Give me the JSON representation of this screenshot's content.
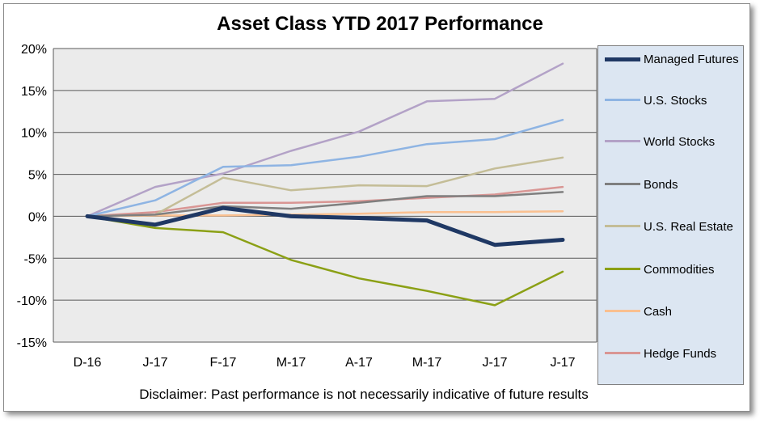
{
  "chart_data": {
    "type": "line",
    "title": "Asset Class YTD 2017 Performance",
    "xlabel": "",
    "ylabel": "",
    "categories": [
      "D-16",
      "J-17",
      "F-17",
      "M-17",
      "A-17",
      "M-17",
      "J-17",
      "J-17"
    ],
    "ylim": [
      -15,
      20
    ],
    "yticks": [
      "20%",
      "15%",
      "10%",
      "5%",
      "0%",
      "-5%",
      "-10%",
      "-15%"
    ],
    "grid": true,
    "legend_position": "right",
    "series": [
      {
        "name": "Managed Futures",
        "color": "#1f3864",
        "values": [
          0,
          -1.0,
          1.0,
          0.0,
          -0.2,
          -0.5,
          -3.4,
          -2.8
        ]
      },
      {
        "name": "U.S. Stocks",
        "color": "#8eb4e3",
        "values": [
          0,
          1.9,
          5.9,
          6.1,
          7.1,
          8.6,
          9.2,
          11.5
        ]
      },
      {
        "name": "World Stocks",
        "color": "#b3a2c7",
        "values": [
          0,
          3.5,
          5.1,
          7.8,
          10.1,
          13.7,
          14.0,
          18.2
        ]
      },
      {
        "name": "Bonds",
        "color": "#7f7f7f",
        "values": [
          0,
          0.2,
          1.2,
          0.9,
          1.6,
          2.4,
          2.4,
          2.9
        ]
      },
      {
        "name": "U.S. Real Estate",
        "color": "#c4bd97",
        "values": [
          0,
          0.2,
          4.6,
          3.1,
          3.7,
          3.6,
          5.7,
          7.0
        ]
      },
      {
        "name": "Commodities",
        "color": "#8ba015",
        "values": [
          0,
          -1.4,
          -1.9,
          -5.2,
          -7.4,
          -8.9,
          -10.6,
          -6.6
        ]
      },
      {
        "name": "Cash",
        "color": "#fac090",
        "values": [
          0,
          0.1,
          0.1,
          0.2,
          0.3,
          0.5,
          0.5,
          0.6
        ]
      },
      {
        "name": "Hedge Funds",
        "color": "#d99694",
        "values": [
          0,
          0.5,
          1.6,
          1.6,
          1.8,
          2.2,
          2.6,
          3.5
        ]
      }
    ]
  },
  "disclaimer": "Disclaimer: Past performance is not necessarily indicative of future results"
}
